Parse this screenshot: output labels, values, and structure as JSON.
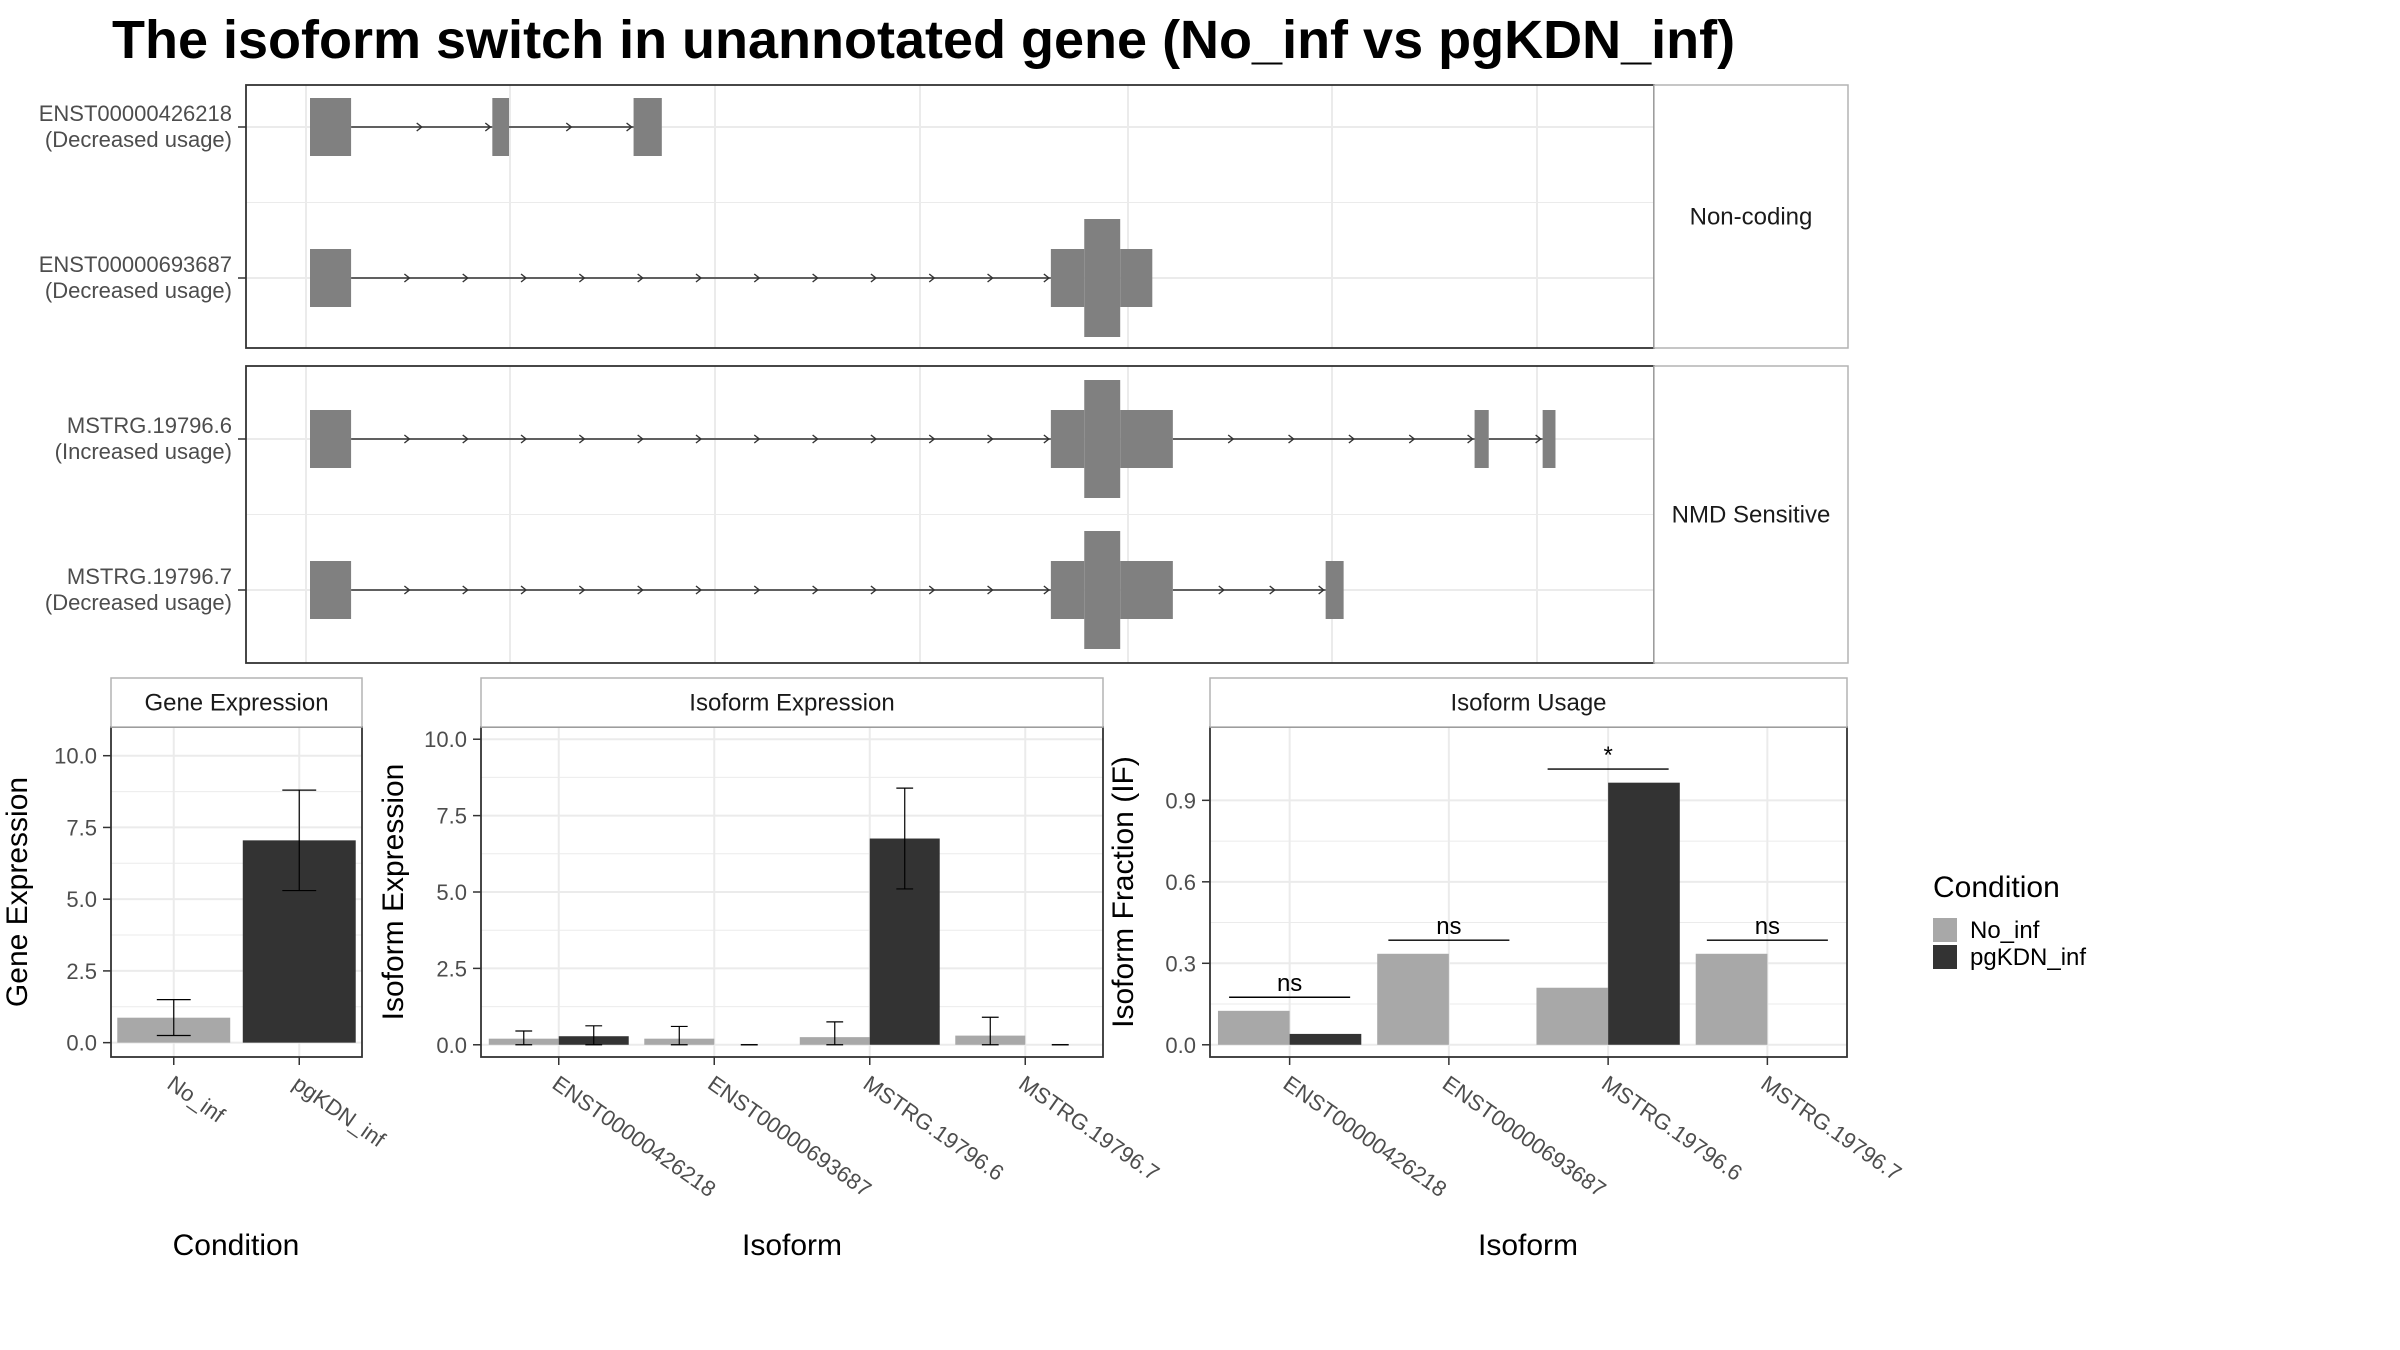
{
  "title": "The isoform switch in unannotated gene (No_inf vs pgKDN_inf)",
  "colors": {
    "No_inf": "#a8a8a8",
    "pgKDN_inf": "#333333",
    "exon": "#808080",
    "grid": "#ebebeb",
    "panel_border": "#333333",
    "strip_border": "#b3b3b3"
  },
  "structure": {
    "facets": [
      {
        "label": "Non-coding",
        "transcripts": [
          {
            "id": "ENST00000426218",
            "usage": "(Decreased usage)",
            "exons": [
              [
                0.0,
                0.032,
                "utr"
              ],
              [
                0.142,
                0.155,
                "utr"
              ],
              [
                0.252,
                0.274,
                "utr"
              ]
            ]
          },
          {
            "id": "ENST00000693687",
            "usage": "(Decreased usage)",
            "exons": [
              [
                0.0,
                0.032,
                "utr"
              ],
              [
                0.577,
                0.603,
                "utr"
              ],
              [
                0.603,
                0.631,
                "cds"
              ],
              [
                0.631,
                0.656,
                "utr"
              ]
            ]
          }
        ]
      },
      {
        "label": "NMD Sensitive",
        "transcripts": [
          {
            "id": "MSTRG.19796.6",
            "usage": "(Increased usage)",
            "exons": [
              [
                0.0,
                0.032,
                "utr"
              ],
              [
                0.577,
                0.603,
                "utr"
              ],
              [
                0.603,
                0.631,
                "cds"
              ],
              [
                0.631,
                0.672,
                "utr"
              ],
              [
                0.907,
                0.918,
                "utr"
              ],
              [
                0.96,
                0.97,
                "utr"
              ]
            ]
          },
          {
            "id": "MSTRG.19796.7",
            "usage": "(Decreased usage)",
            "exons": [
              [
                0.0,
                0.032,
                "utr"
              ],
              [
                0.577,
                0.603,
                "utr"
              ],
              [
                0.603,
                0.631,
                "cds"
              ],
              [
                0.631,
                0.672,
                "utr"
              ],
              [
                0.791,
                0.805,
                "utr"
              ]
            ]
          }
        ]
      }
    ]
  },
  "chart_data": [
    {
      "type": "bar",
      "title": "Gene Expression",
      "xlabel": "Condition",
      "ylabel": "Gene Expression",
      "categories": [
        "No_inf",
        "pgKDN_inf"
      ],
      "values": [
        0.87,
        7.05
      ],
      "errors": [
        [
          0.25,
          1.5
        ],
        [
          5.3,
          8.8
        ]
      ],
      "colors_by_category": [
        "No_inf",
        "pgKDN_inf"
      ],
      "yticks": [
        0.0,
        2.5,
        5.0,
        7.5,
        10.0
      ],
      "ytick_labels": [
        "0.0",
        "2.5",
        "5.0",
        "7.5",
        "10.0"
      ],
      "ylim": [
        -0.5,
        11.0
      ],
      "grid": true
    },
    {
      "type": "bar",
      "title": "Isoform Expression",
      "xlabel": "Isoform",
      "ylabel": "Isoform Expression",
      "categories": [
        "ENST00000426218",
        "ENST00000693687",
        "MSTRG.19796.6",
        "MSTRG.19796.7"
      ],
      "series": [
        {
          "name": "No_inf",
          "values": [
            0.2,
            0.2,
            0.25,
            0.3
          ],
          "errors": [
            [
              0.0,
              0.45
            ],
            [
              0.0,
              0.6
            ],
            [
              0.0,
              0.75
            ],
            [
              0.0,
              0.9
            ]
          ]
        },
        {
          "name": "pgKDN_inf",
          "values": [
            0.28,
            0.0,
            6.75,
            0.0
          ],
          "errors": [
            [
              0.0,
              0.62
            ],
            [
              0.0,
              0.0
            ],
            [
              5.1,
              8.4
            ],
            [
              0.0,
              0.0
            ]
          ]
        }
      ],
      "yticks": [
        0.0,
        2.5,
        5.0,
        7.5,
        10.0
      ],
      "ytick_labels": [
        "0.0",
        "2.5",
        "5.0",
        "7.5",
        "10.0"
      ],
      "ylim": [
        -0.4,
        10.4
      ],
      "grid": true
    },
    {
      "type": "bar",
      "title": "Isoform Usage",
      "xlabel": "Isoform",
      "ylabel": "Isoform Fraction (IF)",
      "categories": [
        "ENST00000426218",
        "ENST00000693687",
        "MSTRG.19796.6",
        "MSTRG.19796.7"
      ],
      "series": [
        {
          "name": "No_inf",
          "values": [
            0.125,
            0.335,
            0.21,
            0.335
          ]
        },
        {
          "name": "pgKDN_inf",
          "values": [
            0.04,
            0.0,
            0.965,
            0.0
          ]
        }
      ],
      "significance": [
        {
          "label": "ns",
          "y": 0.175
        },
        {
          "label": "ns",
          "y": 0.385
        },
        {
          "label": "*",
          "y": 1.015
        },
        {
          "label": "ns",
          "y": 0.385
        }
      ],
      "yticks": [
        0.0,
        0.3,
        0.6,
        0.9
      ],
      "ytick_labels": [
        "0.0",
        "0.3",
        "0.6",
        "0.9"
      ],
      "ylim": [
        -0.045,
        1.17
      ],
      "grid": true
    }
  ],
  "legend": {
    "title": "Condition",
    "items": [
      {
        "label": "No_inf",
        "color_key": "No_inf"
      },
      {
        "label": "pgKDN_inf",
        "color_key": "pgKDN_inf"
      }
    ],
    "placement": "right"
  }
}
